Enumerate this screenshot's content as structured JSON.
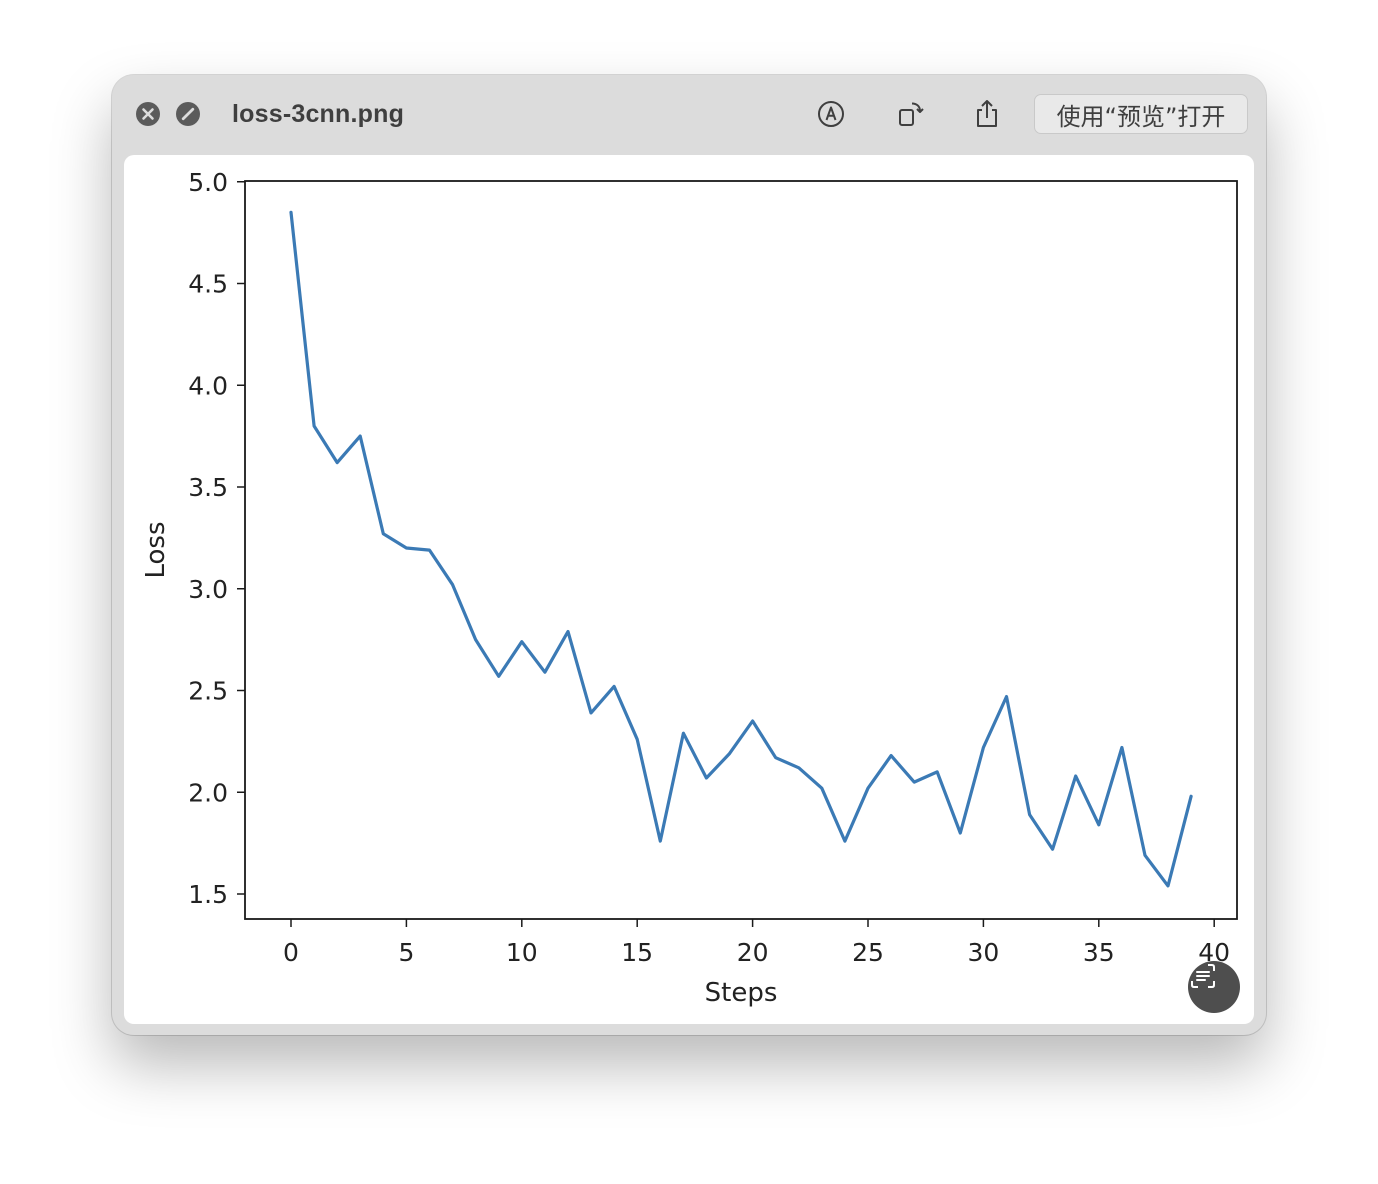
{
  "window": {
    "title": "loss-3cnn.png",
    "open_with_label": "使用“预览”打开"
  },
  "icons": {
    "close": "close-icon",
    "disable": "disable-icon",
    "markup": "markup-pen-icon",
    "rotate": "rotate-icon",
    "share": "share-icon",
    "live_text": "live-text-icon"
  },
  "colors": {
    "line": "#3b7ab5",
    "axis": "#1a1a1a",
    "text": "#222222"
  },
  "chart_data": {
    "type": "line",
    "xlabel": "Steps",
    "ylabel": "Loss",
    "xlim": [
      -2,
      41
    ],
    "ylim": [
      1.38,
      5.0
    ],
    "xticks": [
      0,
      5,
      10,
      15,
      20,
      25,
      30,
      35,
      40
    ],
    "xtick_labels": [
      "0",
      "5",
      "10",
      "15",
      "20",
      "25",
      "30",
      "35",
      "40"
    ],
    "yticks": [
      1.5,
      2.0,
      2.5,
      3.0,
      3.5,
      4.0,
      4.5,
      5.0
    ],
    "ytick_labels": [
      "1.5",
      "2.0",
      "2.5",
      "3.0",
      "3.5",
      "4.0",
      "4.5",
      "5.0"
    ],
    "grid": false,
    "series": [
      {
        "x": [
          0,
          1,
          2,
          3,
          4,
          5,
          6,
          7,
          8,
          9,
          10,
          11,
          12,
          13,
          14,
          15,
          16,
          17,
          18,
          19,
          20,
          21,
          22,
          23,
          24,
          25,
          26,
          27,
          28,
          29,
          30,
          31,
          32,
          33,
          34,
          35,
          36,
          37,
          38,
          39
        ],
        "values": [
          4.85,
          3.8,
          3.62,
          3.75,
          3.27,
          3.2,
          3.19,
          3.02,
          2.75,
          2.57,
          2.74,
          2.59,
          2.79,
          2.39,
          2.52,
          2.26,
          1.76,
          2.29,
          2.07,
          2.19,
          2.35,
          2.17,
          2.12,
          2.02,
          1.76,
          2.02,
          2.18,
          2.05,
          2.1,
          1.8,
          2.22,
          2.47,
          1.89,
          1.72,
          2.08,
          1.84,
          2.22,
          1.69,
          1.54,
          1.98
        ]
      }
    ]
  }
}
